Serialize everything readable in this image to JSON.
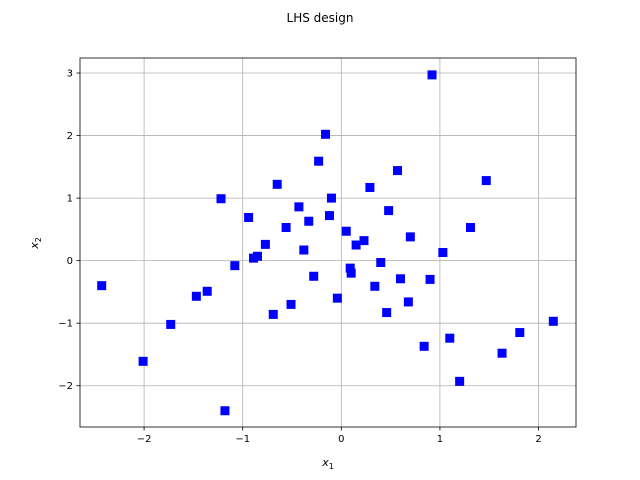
{
  "chart_data": {
    "type": "scatter",
    "title": "LHS design",
    "xlabel": {
      "base": "x",
      "sub": "1"
    },
    "ylabel": {
      "base": "x",
      "sub": "2"
    },
    "xlim": [
      -2.65,
      2.38
    ],
    "ylim": [
      -2.66,
      3.24
    ],
    "xticks": [
      -2,
      -1,
      0,
      1,
      2
    ],
    "yticks": [
      -2,
      -1,
      0,
      1,
      2,
      3
    ],
    "xtick_labels": [
      "−2",
      "−1",
      "0",
      "1",
      "2"
    ],
    "ytick_labels": [
      "−2",
      "−1",
      "0",
      "1",
      "2",
      "3"
    ],
    "grid": true,
    "marker": "square",
    "color": "#0000ff",
    "series": [
      {
        "x": [
          -2.43,
          -2.01,
          -1.73,
          -1.47,
          -1.36,
          -1.22,
          -1.18,
          -1.08,
          -0.94,
          -0.89,
          -0.85,
          -0.77,
          -0.69,
          -0.65,
          -0.56,
          -0.51,
          -0.43,
          -0.38,
          -0.33,
          -0.28,
          -0.23,
          -0.16,
          -0.12,
          -0.1,
          -0.04,
          0.05,
          0.09,
          0.1,
          0.15,
          0.23,
          0.29,
          0.34,
          0.4,
          0.46,
          0.48,
          0.57,
          0.6,
          0.68,
          0.7,
          0.84,
          0.9,
          0.92,
          1.03,
          1.1,
          1.2,
          1.31,
          1.47,
          1.63,
          1.81,
          2.15
        ],
        "y": [
          -0.4,
          -1.61,
          -1.02,
          -0.57,
          -0.49,
          0.99,
          -2.4,
          -0.08,
          0.69,
          0.04,
          0.07,
          0.26,
          -0.86,
          1.22,
          0.53,
          -0.7,
          0.86,
          0.17,
          0.63,
          -0.25,
          1.59,
          2.02,
          0.72,
          1.0,
          -0.6,
          0.47,
          -0.12,
          -0.2,
          0.25,
          0.32,
          1.17,
          -0.41,
          -0.03,
          -0.83,
          0.8,
          1.44,
          -0.29,
          -0.66,
          0.38,
          -1.37,
          -0.3,
          2.97,
          0.13,
          -1.24,
          -1.93,
          0.53,
          1.28,
          -1.48,
          -1.15,
          -0.97
        ]
      }
    ]
  }
}
